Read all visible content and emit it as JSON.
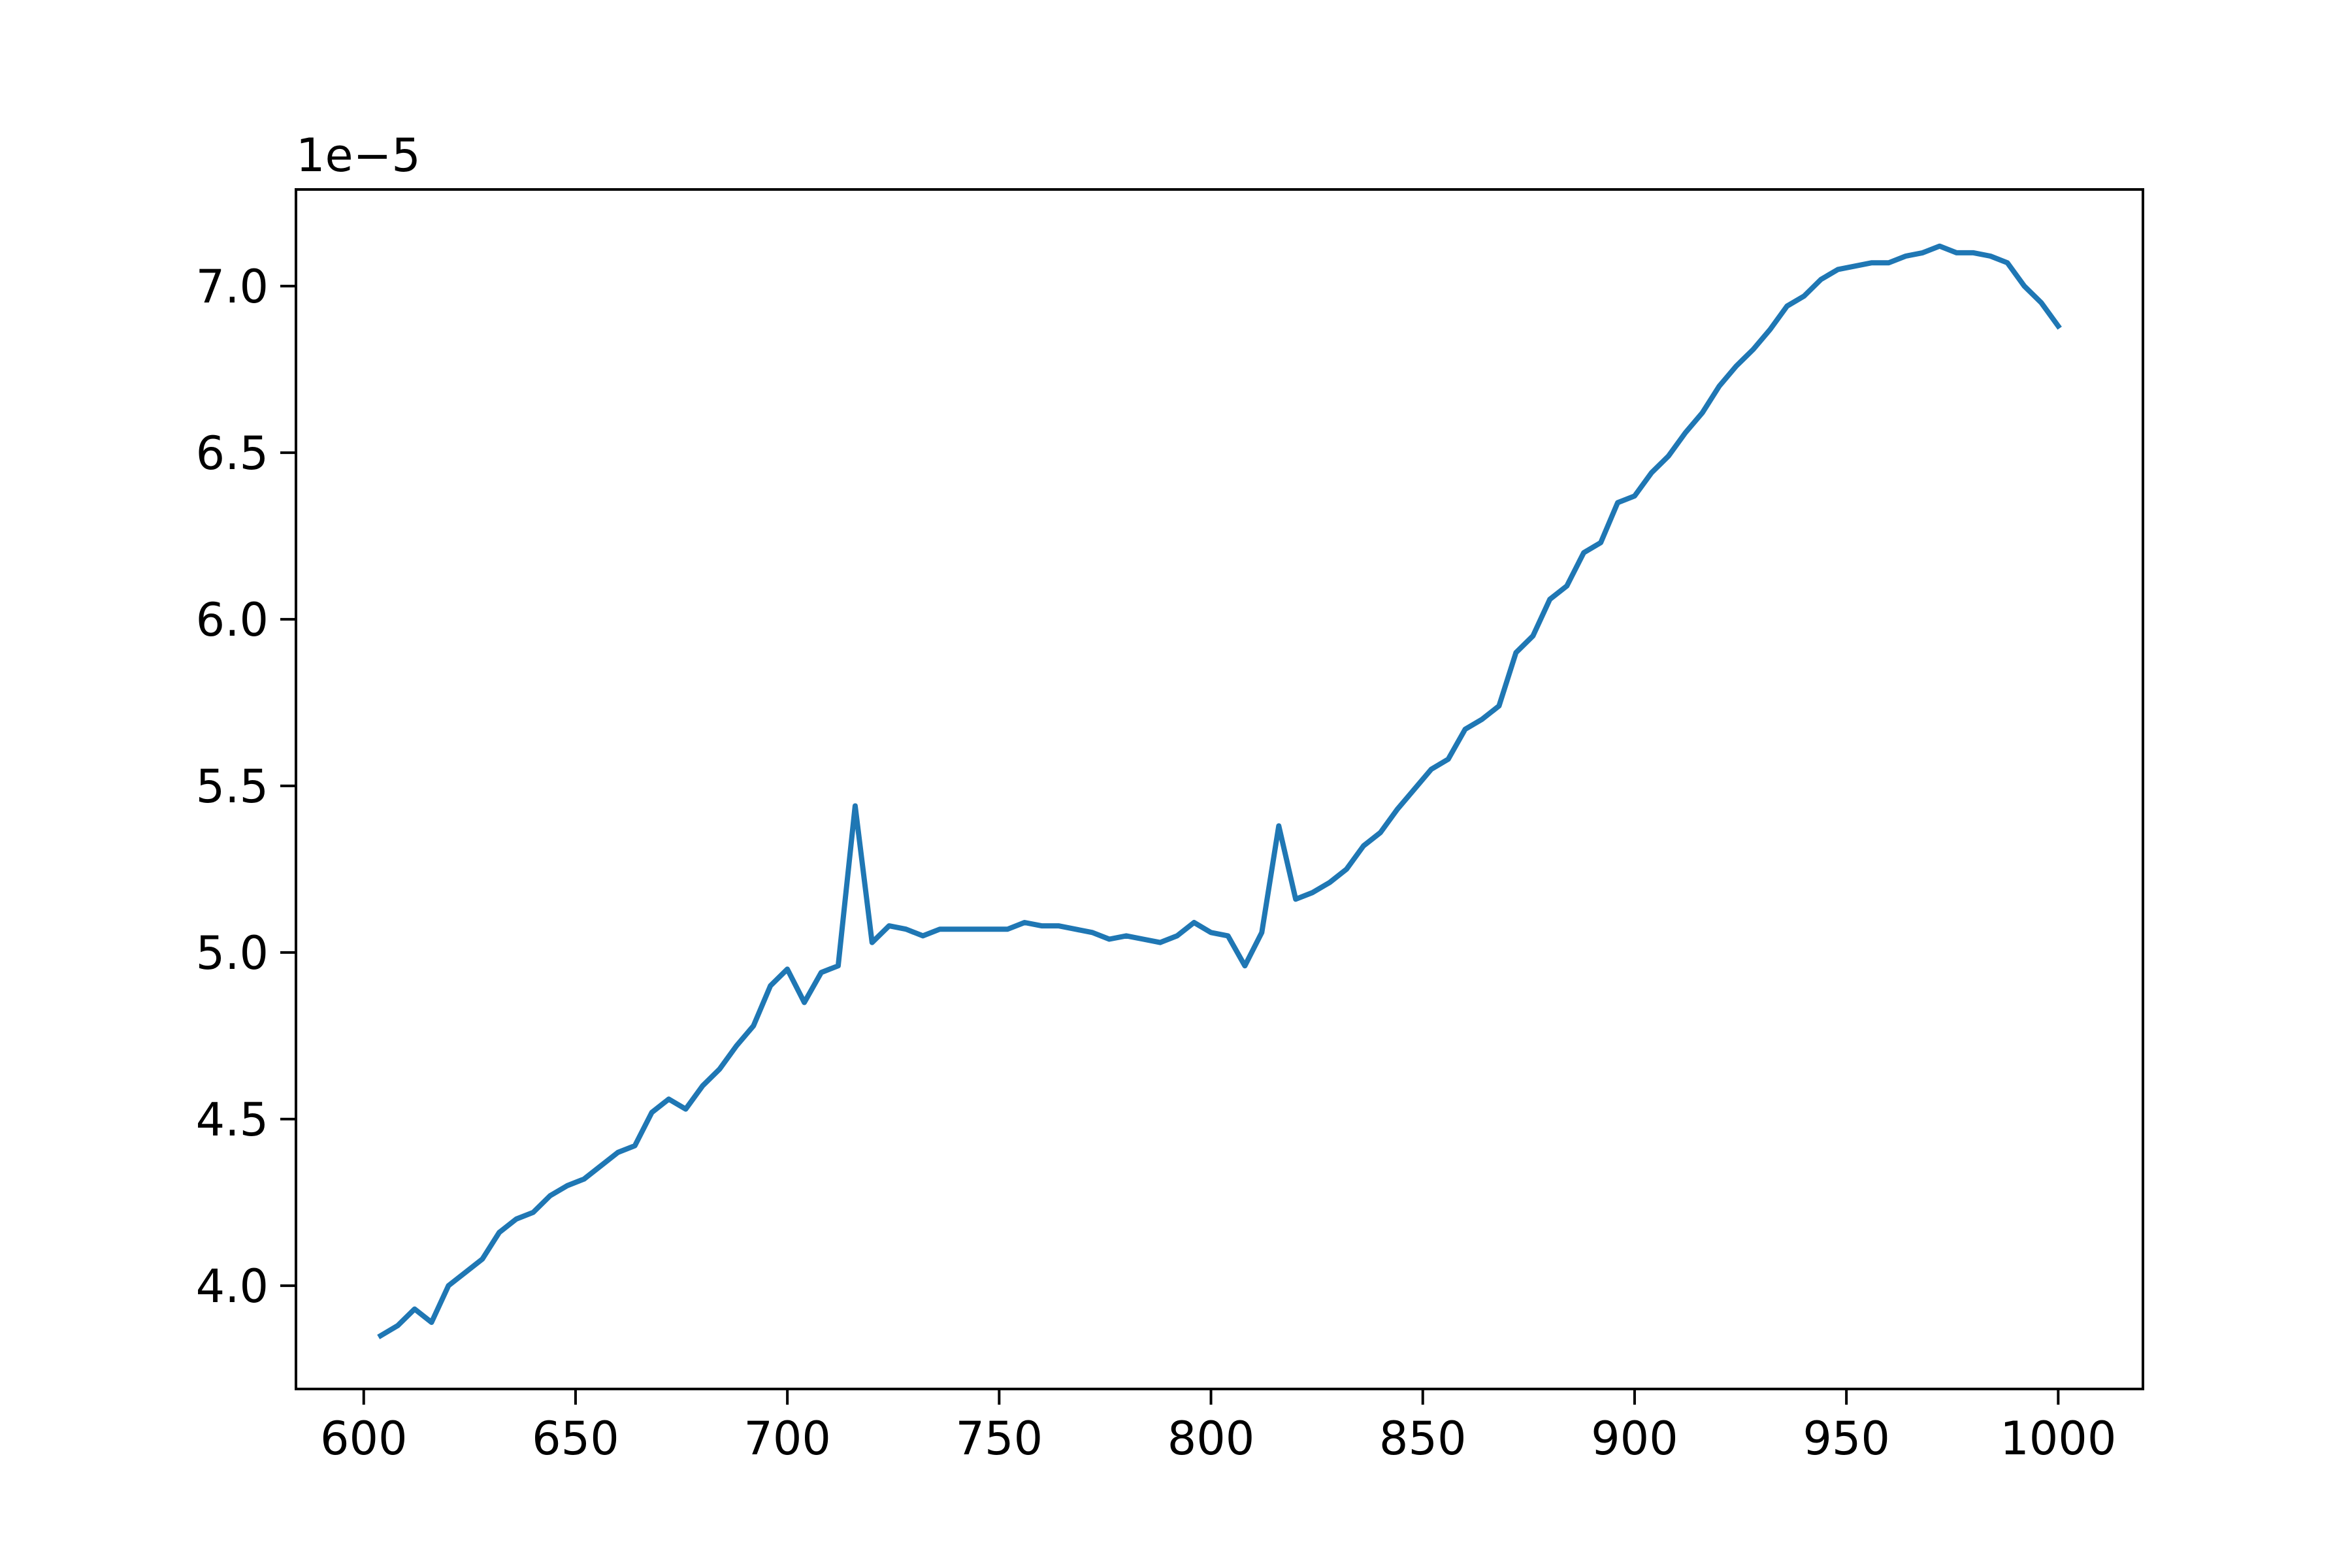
{
  "chart_data": {
    "type": "line",
    "title": "",
    "xlabel": "",
    "ylabel": "",
    "y_offset_label": "1e−5",
    "xlim": [
      584,
      1020
    ],
    "ylim": [
      3.69,
      7.29
    ],
    "x_ticks": [
      600,
      650,
      700,
      750,
      800,
      850,
      900,
      950,
      1000
    ],
    "x_tick_labels": [
      "600",
      "650",
      "700",
      "750",
      "800",
      "850",
      "900",
      "950",
      "1000"
    ],
    "y_ticks": [
      4.0,
      4.5,
      5.0,
      5.5,
      6.0,
      6.5,
      7.0
    ],
    "y_tick_labels": [
      "4.0",
      "4.5",
      "5.0",
      "5.5",
      "6.0",
      "6.5",
      "7.0"
    ],
    "grid": false,
    "legend": "none",
    "line_color": "#1f77b4",
    "series": [
      {
        "x": [
          604,
          608,
          612,
          616,
          620,
          624,
          628,
          632,
          636,
          640,
          644,
          648,
          652,
          656,
          660,
          664,
          668,
          672,
          676,
          680,
          684,
          688,
          692,
          696,
          700,
          704,
          708,
          712,
          716,
          720,
          724,
          728,
          732,
          736,
          740,
          744,
          748,
          752,
          756,
          760,
          764,
          768,
          772,
          776,
          780,
          784,
          788,
          792,
          796,
          800,
          804,
          808,
          812,
          816,
          820,
          824,
          828,
          832,
          836,
          840,
          844,
          848,
          852,
          856,
          860,
          864,
          868,
          872,
          876,
          880,
          884,
          888,
          892,
          896,
          900,
          904,
          908,
          912,
          916,
          920,
          924,
          928,
          932,
          936,
          940,
          944,
          948,
          952,
          956,
          960,
          964,
          968,
          972,
          976,
          980,
          984,
          988,
          992,
          996,
          1000
        ],
        "y": [
          3.85,
          3.88,
          3.93,
          3.89,
          4.0,
          4.04,
          4.08,
          4.16,
          4.2,
          4.22,
          4.27,
          4.3,
          4.32,
          4.36,
          4.4,
          4.42,
          4.52,
          4.56,
          4.53,
          4.6,
          4.65,
          4.72,
          4.78,
          4.9,
          4.95,
          4.85,
          4.94,
          4.96,
          5.44,
          5.03,
          5.08,
          5.07,
          5.05,
          5.07,
          5.07,
          5.07,
          5.07,
          5.07,
          5.09,
          5.08,
          5.08,
          5.07,
          5.06,
          5.04,
          5.05,
          5.04,
          5.03,
          5.05,
          5.09,
          5.06,
          5.05,
          4.96,
          5.06,
          5.38,
          5.16,
          5.18,
          5.21,
          5.25,
          5.32,
          5.36,
          5.43,
          5.49,
          5.55,
          5.58,
          5.67,
          5.7,
          5.74,
          5.9,
          5.95,
          6.06,
          6.1,
          6.2,
          6.23,
          6.35,
          6.37,
          6.44,
          6.49,
          6.56,
          6.62,
          6.7,
          6.76,
          6.81,
          6.87,
          6.94,
          6.97,
          7.02,
          7.05,
          7.06,
          7.07,
          7.07,
          7.09,
          7.1,
          7.12,
          7.1,
          7.1,
          7.09,
          7.07,
          7.0,
          6.95,
          6.88
        ]
      }
    ]
  }
}
